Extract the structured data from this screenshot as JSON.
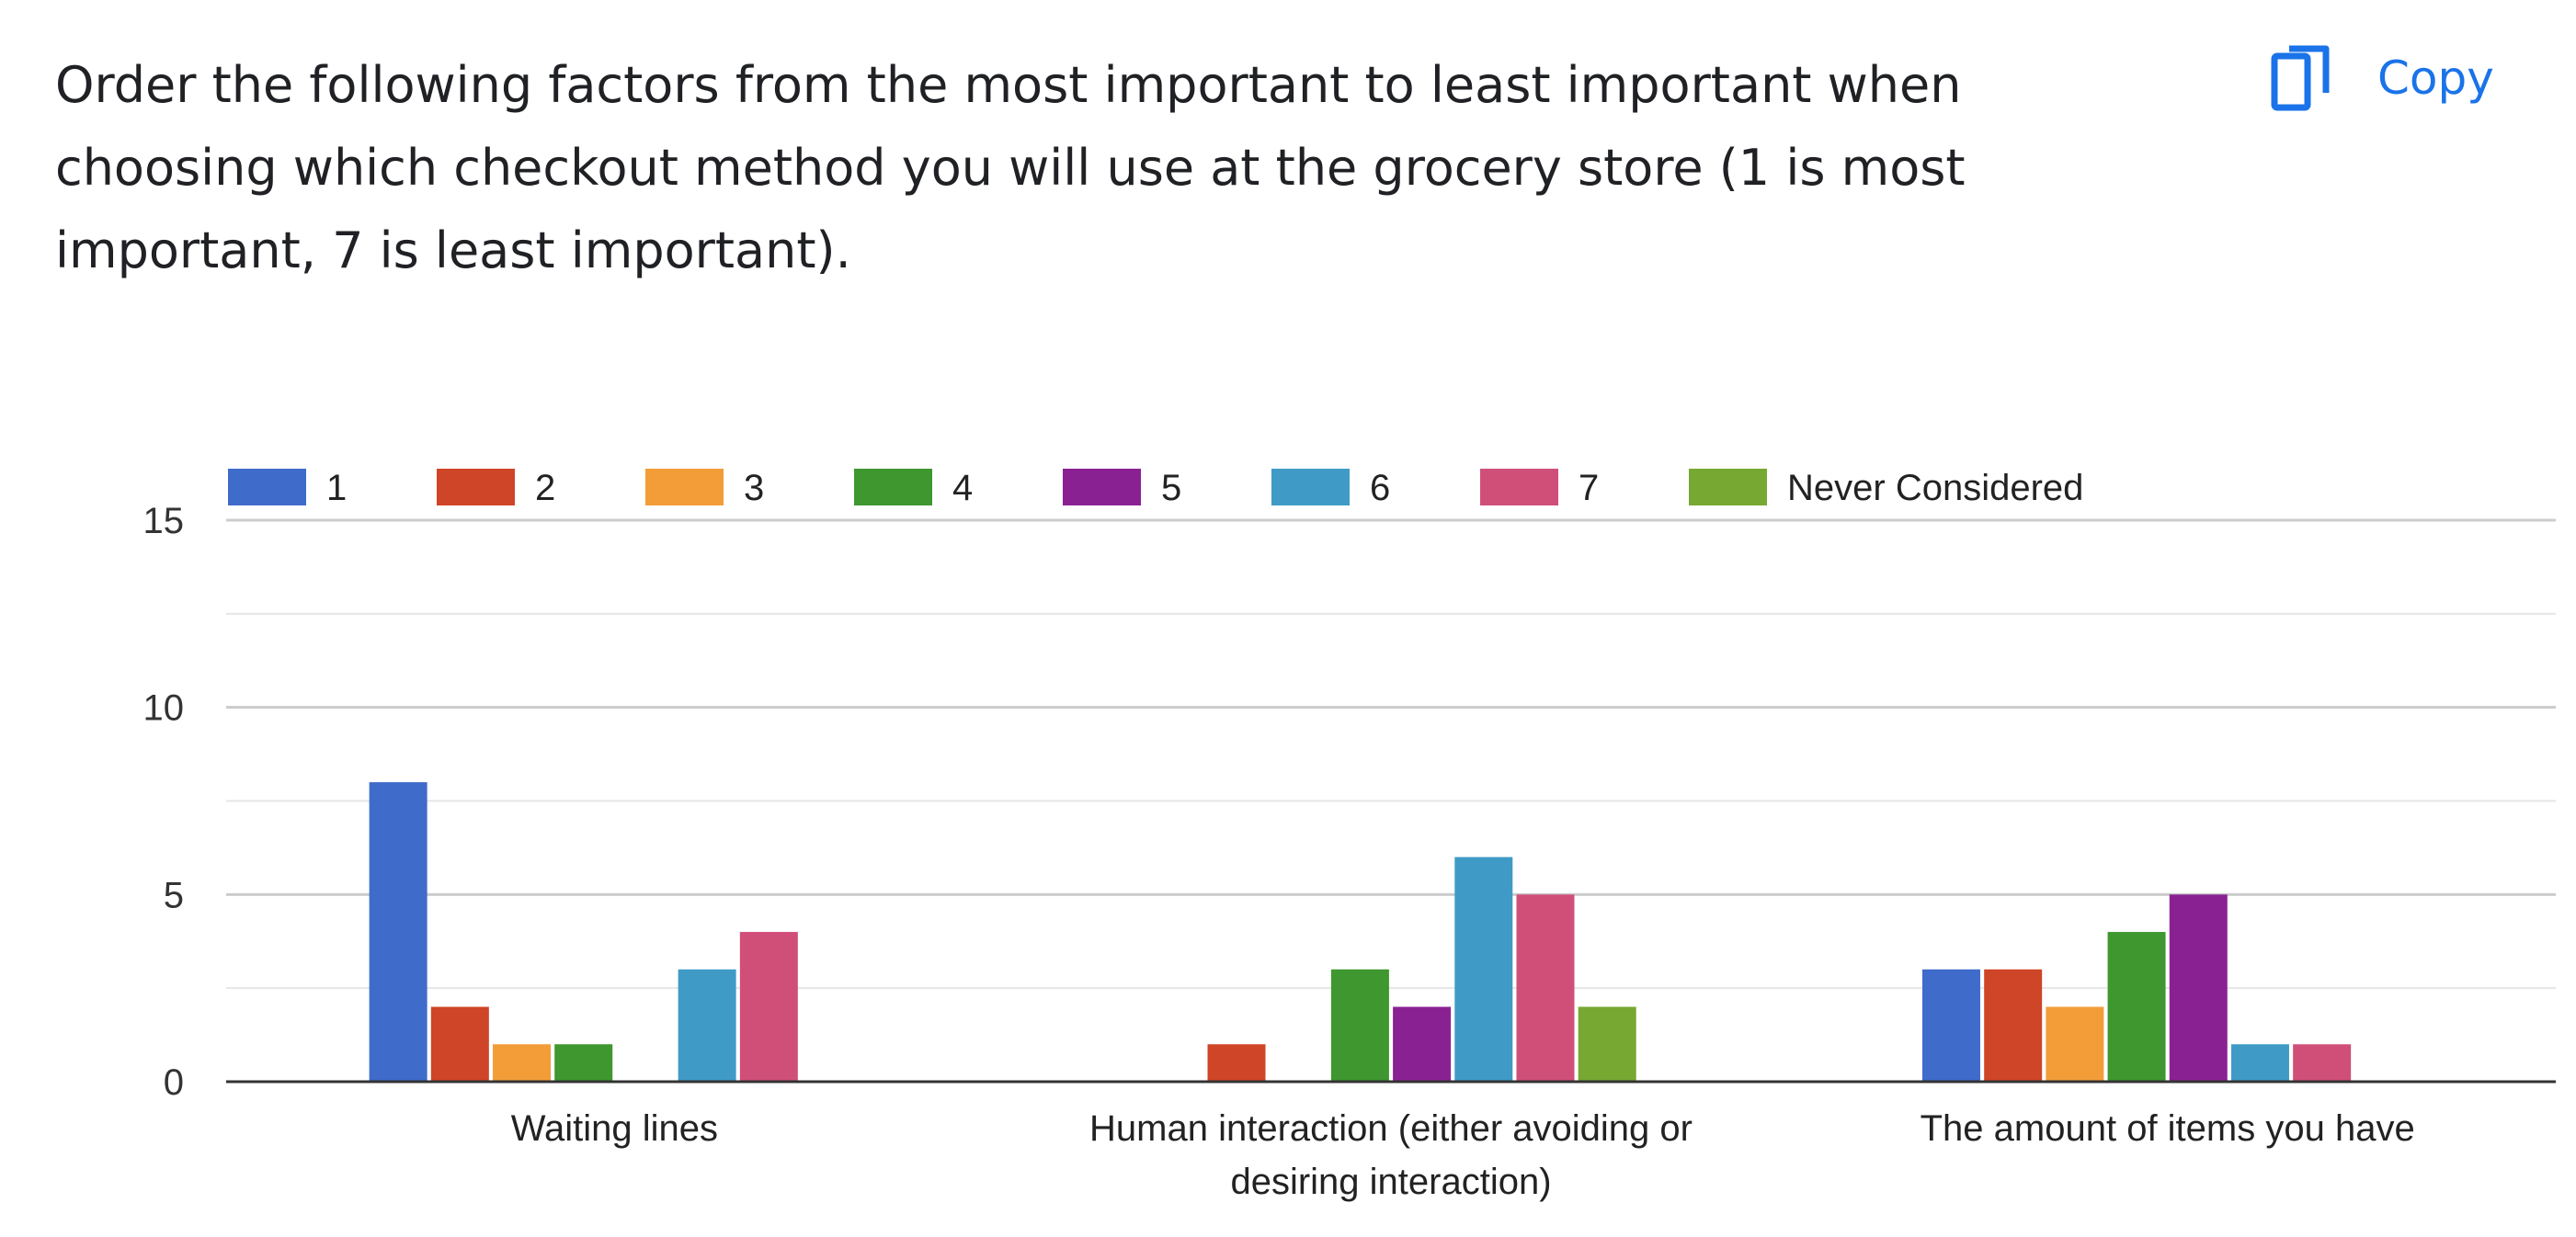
{
  "question": {
    "text": "Order the following factors from the most important to least important when choosing which checkout method you will use at the grocery store (1 is most important, 7 is least important)."
  },
  "copy_button": {
    "label": "Copy",
    "icon": "copy-icon"
  },
  "chart_data": {
    "type": "bar",
    "categories": [
      [
        "Waiting lines"
      ],
      [
        "Human interaction (either avoiding or",
        "desiring interaction)"
      ],
      [
        "The amount of items you have"
      ]
    ],
    "series": [
      {
        "name": "1",
        "color": "#3f6bcb",
        "values": [
          8,
          0,
          3
        ]
      },
      {
        "name": "2",
        "color": "#cf4527",
        "values": [
          2,
          1,
          3
        ]
      },
      {
        "name": "3",
        "color": "#f29d38",
        "values": [
          1,
          0,
          2
        ]
      },
      {
        "name": "4",
        "color": "#3e972f",
        "values": [
          1,
          3,
          4
        ]
      },
      {
        "name": "5",
        "color": "#8a2193",
        "values": [
          0,
          2,
          5
        ]
      },
      {
        "name": "6",
        "color": "#3f9bc6",
        "values": [
          3,
          6,
          1
        ]
      },
      {
        "name": "7",
        "color": "#d04f79",
        "values": [
          4,
          5,
          1
        ]
      },
      {
        "name": "Never Considered",
        "color": "#76a832",
        "values": [
          0,
          2,
          0
        ]
      }
    ],
    "yticks": [
      0,
      5,
      10,
      15
    ],
    "ylim": [
      0,
      15
    ],
    "grid": true,
    "legend": "top"
  }
}
